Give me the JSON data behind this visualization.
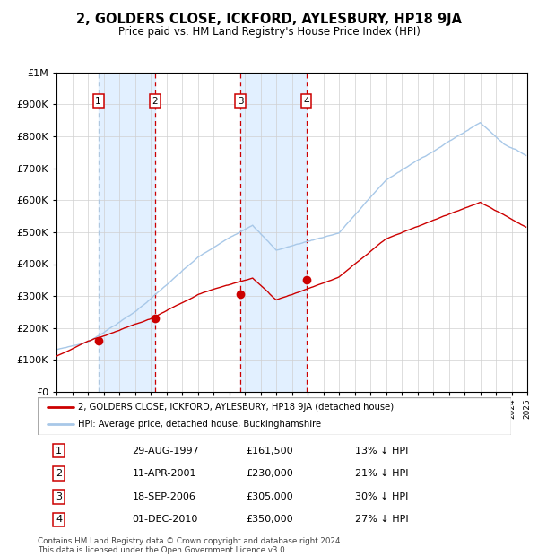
{
  "title": "2, GOLDERS CLOSE, ICKFORD, AYLESBURY, HP18 9JA",
  "subtitle": "Price paid vs. HM Land Registry's House Price Index (HPI)",
  "legend_line1": "2, GOLDERS CLOSE, ICKFORD, AYLESBURY, HP18 9JA (detached house)",
  "legend_line2": "HPI: Average price, detached house, Buckinghamshire",
  "footer1": "Contains HM Land Registry data © Crown copyright and database right 2024.",
  "footer2": "This data is licensed under the Open Government Licence v3.0.",
  "sale_years_float": [
    1997.664,
    2001.278,
    2006.717,
    2010.917
  ],
  "sale_prices": [
    161500,
    230000,
    305000,
    350000
  ],
  "sale_labels": [
    "1",
    "2",
    "3",
    "4"
  ],
  "sale_table": [
    [
      "1",
      "29-AUG-1997",
      "£161,500",
      "13% ↓ HPI"
    ],
    [
      "2",
      "11-APR-2001",
      "£230,000",
      "21% ↓ HPI"
    ],
    [
      "3",
      "18-SEP-2006",
      "£305,000",
      "30% ↓ HPI"
    ],
    [
      "4",
      "01-DEC-2010",
      "£350,000",
      "27% ↓ HPI"
    ]
  ],
  "hpi_color": "#a8c8e8",
  "price_color": "#cc0000",
  "vline_color_blue": "#b0c8e0",
  "vline_color_red": "#cc0000",
  "shade_color": "#ddeeff",
  "ylim": [
    0,
    1000000
  ],
  "yticks": [
    0,
    100000,
    200000,
    300000,
    400000,
    500000,
    600000,
    700000,
    800000,
    900000,
    1000000
  ],
  "x_start_year": 1995,
  "x_end_year": 2025
}
